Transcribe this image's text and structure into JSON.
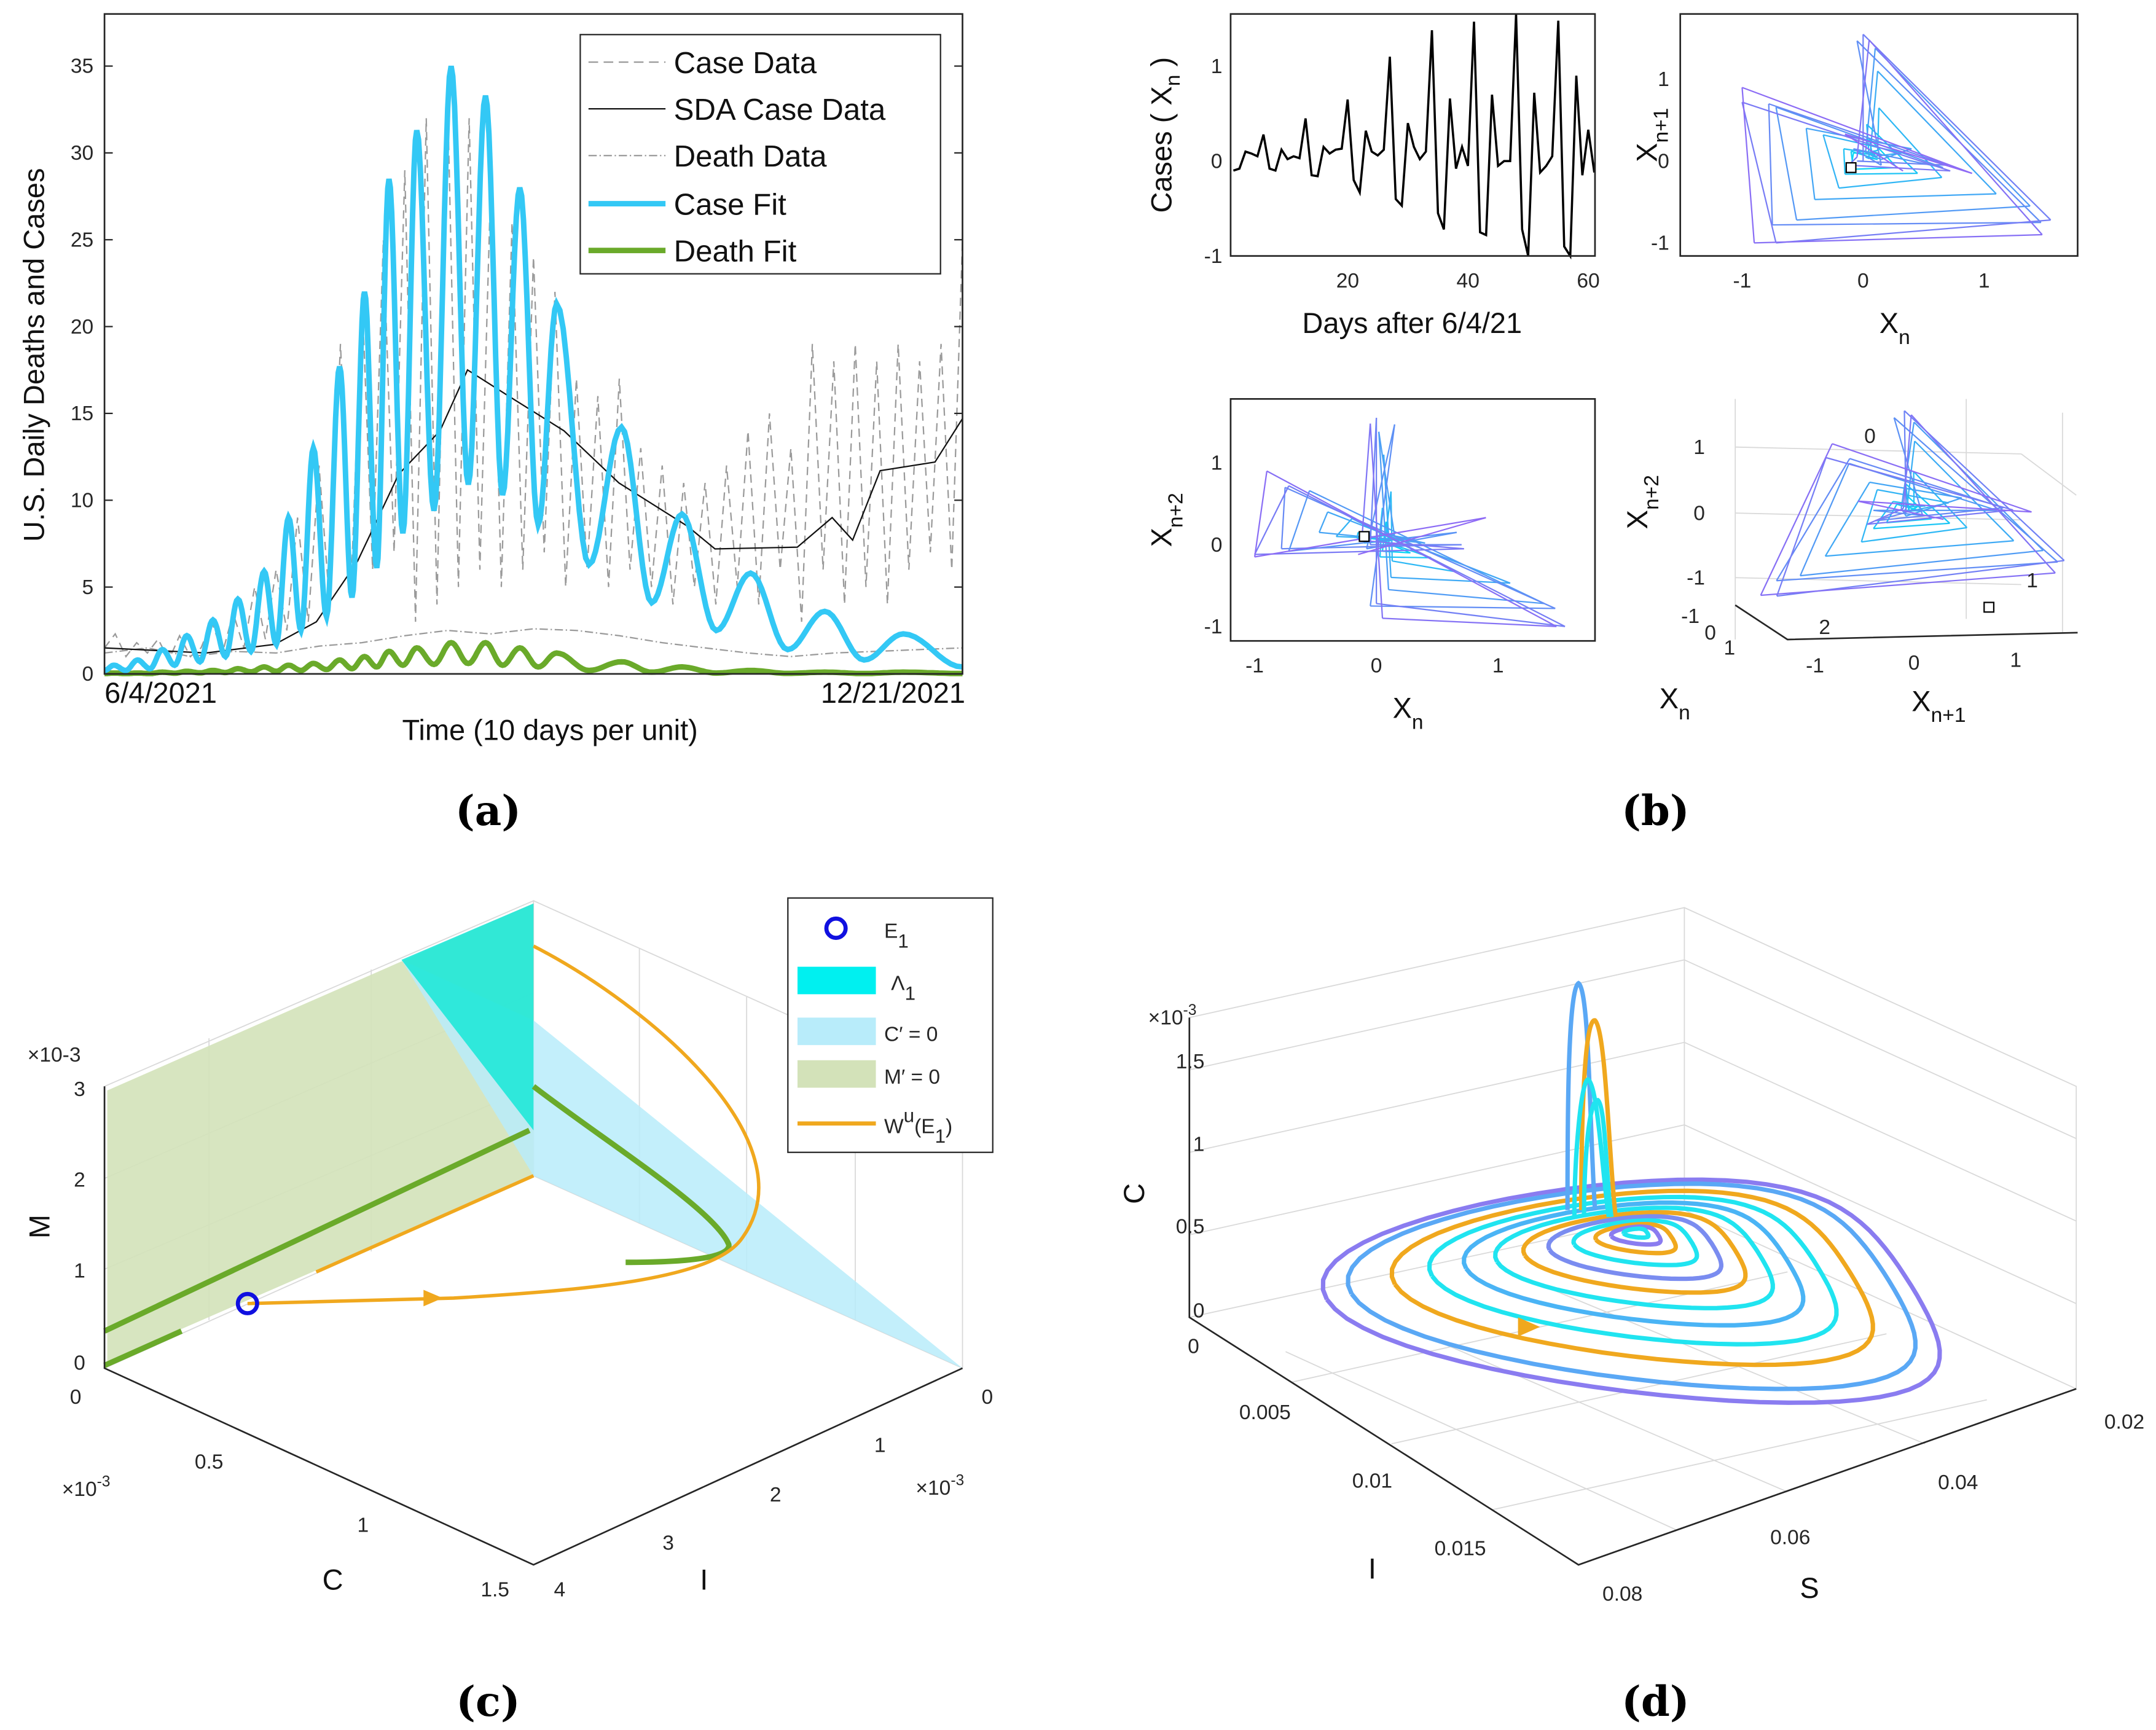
{
  "panel_labels": [
    "(a)",
    "(b)",
    "(c)",
    "(d)"
  ],
  "colors": {
    "case_fit": "#33c8f5",
    "death_fit": "#6aaa2a",
    "sda": "#111111",
    "data_gray": "#9a9a9a",
    "orange": "#f0a81e",
    "cyan": "#00f0f0",
    "light_blue": "#b8ecfa",
    "light_green": "#d3e2b9",
    "purple": "#8a6cf0",
    "blue_marker": "#1010e0"
  },
  "chart_data": [
    {
      "id": "a",
      "type": "line",
      "ylabel": "U.S. Daily Deaths and Cases",
      "xlabel": "Time (10 days per unit)",
      "x_start_label": "6/4/2021",
      "x_end_label": "12/21/2021",
      "xlim": [
        0,
        20
      ],
      "ylim": [
        0,
        38
      ],
      "yticks": [
        "0",
        "5",
        "10",
        "15",
        "20",
        "25",
        "30",
        "35"
      ],
      "legend": {
        "position": "top-right",
        "entries": [
          "Case Data",
          "SDA Case Data",
          "Death Data",
          "Case Fit",
          "Death Fit"
        ]
      },
      "series": [
        {
          "name": "Case Data",
          "style": "dashed",
          "t_step": 0.25,
          "values": [
            1.5,
            2.3,
            1,
            1.8,
            1.2,
            2,
            0.8,
            2.2,
            1,
            1.5,
            3,
            1.2,
            3.5,
            1.5,
            5,
            2,
            6,
            2.5,
            9,
            3,
            12,
            4,
            19,
            5,
            22,
            6,
            25,
            7,
            29,
            3,
            32,
            4,
            33,
            5,
            32,
            6,
            28,
            5,
            26,
            6,
            24,
            7,
            22,
            5,
            17,
            6,
            16,
            5,
            17,
            6,
            13,
            5,
            12,
            4,
            11,
            5,
            11,
            4,
            12,
            5,
            14,
            4,
            15,
            6,
            13,
            3,
            19,
            6,
            18,
            4,
            19,
            5,
            18,
            4,
            19,
            6,
            18,
            7,
            19,
            6,
            25
          ]
        },
        {
          "name": "SDA Case Data",
          "style": "solid",
          "t": [
            0,
            2.37,
            3.97,
            4.94,
            5.9,
            6.86,
            7.82,
            8.46,
            9.42,
            10.71,
            11.99,
            13.59,
            14.23,
            16.15,
            16.96,
            17.44,
            18.08,
            19.36,
            20
          ],
          "values": [
            1.5,
            1.2,
            1.7,
            3,
            6.5,
            11.5,
            14,
            17.5,
            16,
            14,
            11,
            8.5,
            7.2,
            7.3,
            9,
            7.7,
            11.7,
            12.2,
            14.7
          ]
        },
        {
          "name": "Death Data",
          "style": "dashdot",
          "t_step": 1,
          "values": [
            1.2,
            1.5,
            1,
            1.3,
            1.2,
            1.6,
            1.8,
            2.2,
            2.5,
            2.3,
            2.6,
            2.5,
            2.2,
            1.8,
            1.5,
            1.2,
            1,
            1.2,
            1.3,
            1.4,
            1.5
          ]
        },
        {
          "name": "Case Fit",
          "style": "thick",
          "peak_t": [
            0.22,
            0.77,
            1.35,
            1.92,
            2.53,
            3.11,
            3.72,
            4.29,
            4.87,
            5.48,
            6.06,
            6.63,
            7.28,
            8.08,
            8.88,
            9.68,
            10.54,
            12.05,
            13.46,
            15.06,
            16.79,
            18.62
          ],
          "peak_values": [
            0.5,
            0.8,
            1.4,
            2.2,
            3.1,
            4.3,
            5.9,
            9,
            13,
            17.7,
            22,
            28.5,
            31.3,
            35,
            33.3,
            28,
            21.3,
            14.2,
            9.2,
            5.8,
            3.6,
            2.3
          ],
          "trough_values": [
            0.2,
            0.3,
            0.5,
            0.7,
            1.0,
            1.3,
            1.7,
            2.5,
            3.3,
            4.4,
            6.1,
            8.1,
            9.4,
            10.9,
            10.3,
            8.6,
            6.3,
            4.1,
            2.5,
            1.4,
            0.8,
            0.4
          ]
        },
        {
          "name": "Death Fit",
          "style": "thick",
          "peak_values": [
            0.05,
            0.05,
            0.1,
            0.15,
            0.2,
            0.3,
            0.4,
            0.5,
            0.6,
            0.8,
            1.0,
            1.3,
            1.5,
            1.8,
            1.8,
            1.5,
            1.2,
            0.7,
            0.4,
            0.2,
            0.1,
            0.1
          ],
          "trough_values": [
            0.02,
            0.02,
            0.04,
            0.06,
            0.08,
            0.12,
            0.15,
            0.2,
            0.25,
            0.3,
            0.4,
            0.5,
            0.55,
            0.6,
            0.5,
            0.4,
            0.2,
            0.1,
            0.05,
            0.03,
            0.02,
            0.02
          ]
        }
      ]
    },
    {
      "id": "b",
      "type": "line",
      "time_series": {
        "ylabel": "Cases ( X_n )",
        "ylabel_parts": {
          "pre": "Cases ( X",
          "sub": "n",
          "post": " )"
        },
        "xlabel": "Days after 6/4/21",
        "xticks": [
          "20",
          "40",
          "60"
        ],
        "yticks": [
          "-1",
          "0",
          "1"
        ],
        "xlim": [
          1,
          61
        ],
        "ylim": [
          -1,
          1.55
        ],
        "values": [
          -0.1,
          -0.08,
          0.1,
          0.08,
          0.05,
          0.28,
          -0.08,
          -0.1,
          0.12,
          0.02,
          0.05,
          0.03,
          0.45,
          -0.15,
          -0.16,
          0.15,
          0.08,
          0.12,
          0.13,
          0.65,
          -0.2,
          -0.33,
          0.32,
          0.1,
          0.06,
          0.12,
          1.1,
          -0.4,
          -0.47,
          0.4,
          0.15,
          0.02,
          0.1,
          1.38,
          -0.55,
          -0.72,
          0.66,
          -0.08,
          0.15,
          -0.05,
          1.47,
          -0.75,
          -0.78,
          0.7,
          -0.05,
          0,
          0,
          1.55,
          -0.72,
          -1,
          0.72,
          -0.12,
          -0.05,
          0.05,
          1.48,
          -0.9,
          -1,
          0.9,
          -0.15,
          0.33,
          -0.12
        ]
      },
      "delay_plot_1": {
        "xlabel": {
          "base": "X",
          "sub": "n"
        },
        "ylabel": {
          "base": "X",
          "sub": "n+1"
        },
        "xticks": [
          "-1",
          "0",
          "1"
        ],
        "yticks": [
          "-1",
          "0",
          "1"
        ],
        "lag": 1
      },
      "delay_plot_2": {
        "xlabel": {
          "base": "X",
          "sub": "n"
        },
        "ylabel": {
          "base": "X",
          "sub": "n+2"
        },
        "xticks": [
          "-1",
          "0",
          "1"
        ],
        "yticks": [
          "-1",
          "0",
          "1"
        ],
        "lag": 2
      },
      "delay_plot_3d": {
        "xlabel": {
          "base": "X",
          "sub": "n"
        },
        "ylabel": {
          "base": "X",
          "sub": "n+1"
        },
        "zlabel": {
          "base": "X",
          "sub": "n+2"
        },
        "xticks": [
          "-1",
          "0",
          "1"
        ],
        "yticks": [
          "-1",
          "0",
          "1"
        ],
        "zticks": [
          "-1",
          "0",
          "1"
        ],
        "annotations": [
          "0",
          "1",
          "2"
        ]
      }
    },
    {
      "id": "c",
      "type": "3d-surface",
      "zlabel": "M",
      "xlabel": "C",
      "ylabel": "I",
      "scale_label": "×10-3",
      "scale_base": "×10",
      "scale_exp": "-3",
      "zticks": [
        "0",
        "1",
        "2",
        "3"
      ],
      "xticks": [
        "0",
        "0.5",
        "1",
        "1.5"
      ],
      "yticks": [
        "0",
        "1",
        "2",
        "3",
        "4"
      ],
      "legend": {
        "position": "top-right",
        "entries": [
          {
            "base": "E",
            "sub": "1",
            "sup": "",
            "tail": ""
          },
          {
            "base": "Λ",
            "sub": "1",
            "sup": "",
            "tail": ""
          },
          {
            "base": "C′ = 0",
            "sub": "",
            "sup": "",
            "tail": ""
          },
          {
            "base": "M′ = 0",
            "sub": "",
            "sup": "",
            "tail": ""
          },
          {
            "base": "W",
            "sup": "u",
            "sub": "",
            "tail": "(E",
            "sub2": "1",
            "close": ")"
          }
        ]
      }
    },
    {
      "id": "d",
      "type": "3d-line",
      "zlabel": "C",
      "xlabel": "S",
      "ylabel": "I",
      "scale_base": "×10",
      "scale_exp": "-3",
      "zticks": [
        "0",
        "0.5",
        "1",
        "1.5"
      ],
      "yticks": [
        "0",
        "0.005",
        "0.01",
        "0.015"
      ],
      "xticks": [
        "0.02",
        "0.04",
        "0.06",
        "0.08"
      ]
    }
  ]
}
